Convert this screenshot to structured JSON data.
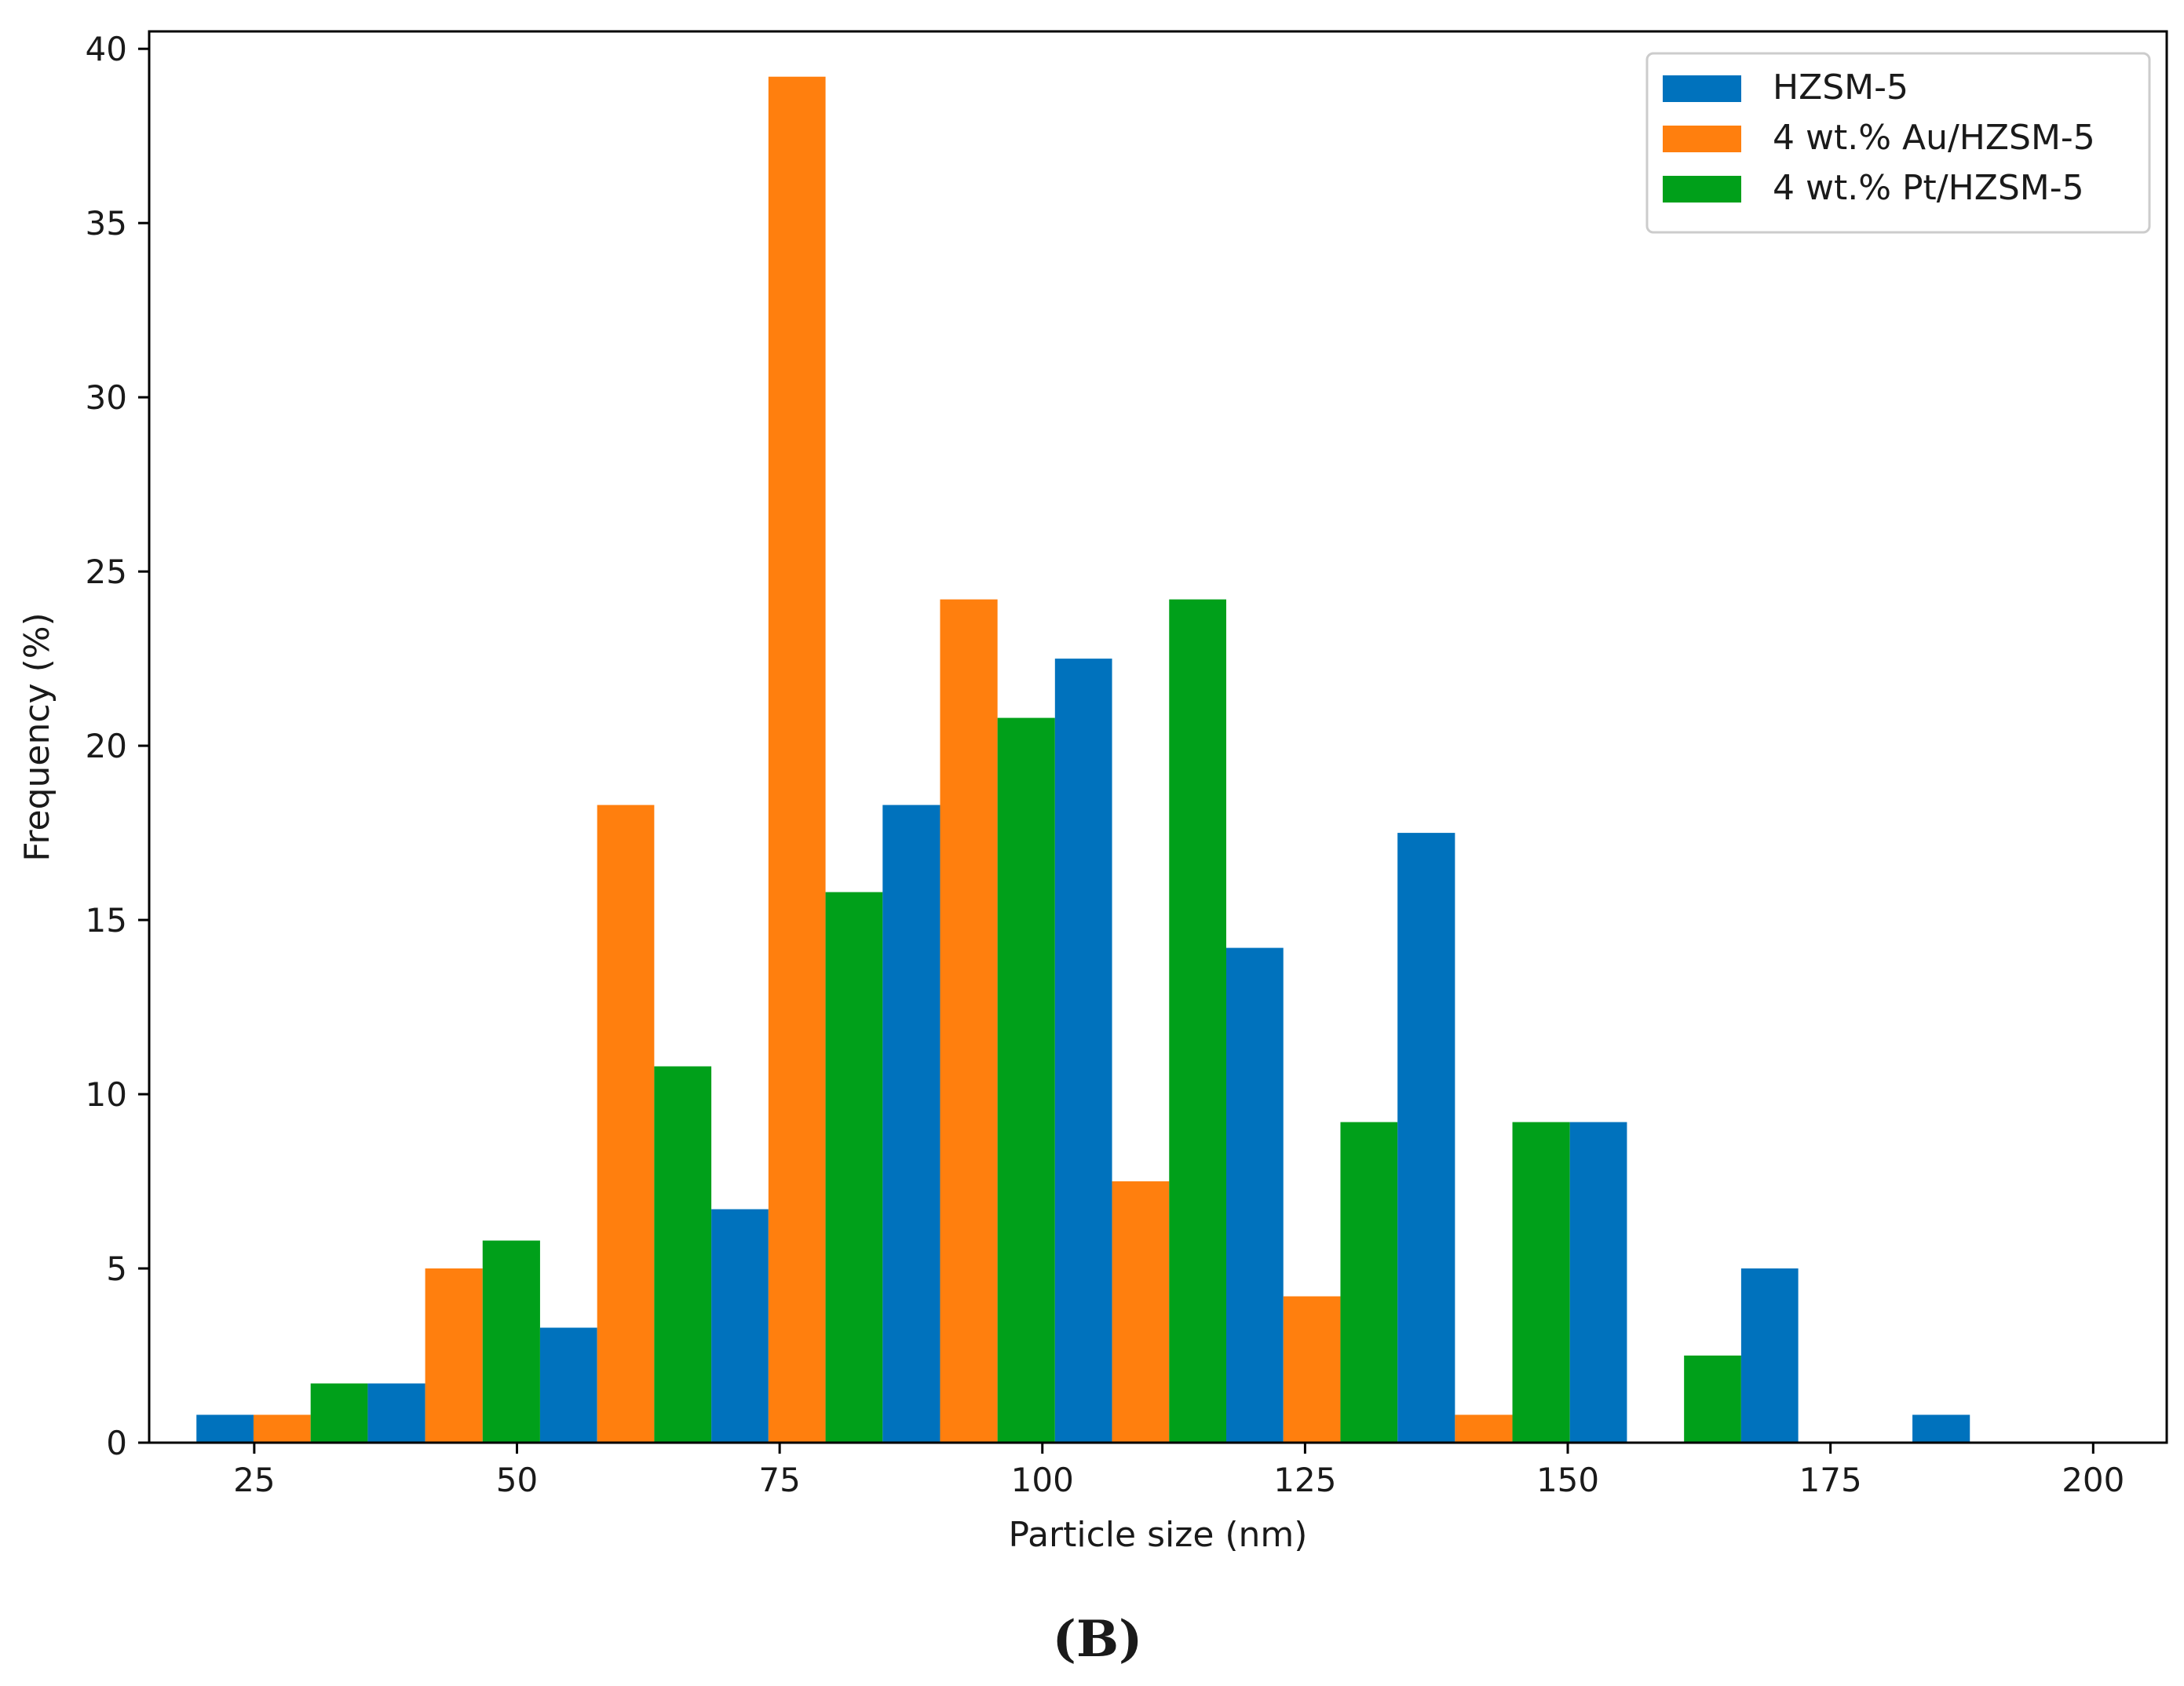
{
  "chart_data": {
    "type": "bar",
    "subtype": "histogram",
    "panel_label": "(B)",
    "xlabel": "Particle size (nm)",
    "ylabel": "Frequency (%)",
    "xlim": [
      15,
      207
    ],
    "ylim": [
      0,
      40.5
    ],
    "x_ticks": [
      25,
      50,
      75,
      100,
      125,
      150,
      175,
      200
    ],
    "y_ticks": [
      0,
      5,
      10,
      15,
      20,
      25,
      30,
      35,
      40
    ],
    "bins": [
      [
        19.5,
        35.8
      ],
      [
        35.8,
        52.2
      ],
      [
        52.2,
        68.5
      ],
      [
        68.5,
        84.8
      ],
      [
        84.8,
        101.2
      ],
      [
        101.2,
        117.5
      ],
      [
        117.5,
        133.8
      ],
      [
        133.8,
        150.2
      ],
      [
        150.2,
        166.5
      ],
      [
        166.5,
        182.8
      ],
      [
        182.8,
        199.2
      ]
    ],
    "grid": false,
    "legend_position": "top-right",
    "series": [
      {
        "name": "HZSM-5",
        "color": "#0072bd",
        "values": [
          0.8,
          1.7,
          3.3,
          6.7,
          18.3,
          22.5,
          14.2,
          17.5,
          9.2,
          5.0,
          0.8
        ]
      },
      {
        "name": "4 wt.% Au/HZSM-5",
        "color": "#ff7f0e",
        "values": [
          0.8,
          5.0,
          18.3,
          39.2,
          24.2,
          7.5,
          4.2,
          0.8,
          0,
          0,
          0
        ]
      },
      {
        "name": "4 wt.% Pt/HZSM-5",
        "color": "#00a01a",
        "values": [
          1.7,
          5.8,
          10.8,
          15.8,
          20.8,
          24.2,
          9.2,
          9.2,
          2.5,
          0,
          0
        ]
      }
    ]
  }
}
